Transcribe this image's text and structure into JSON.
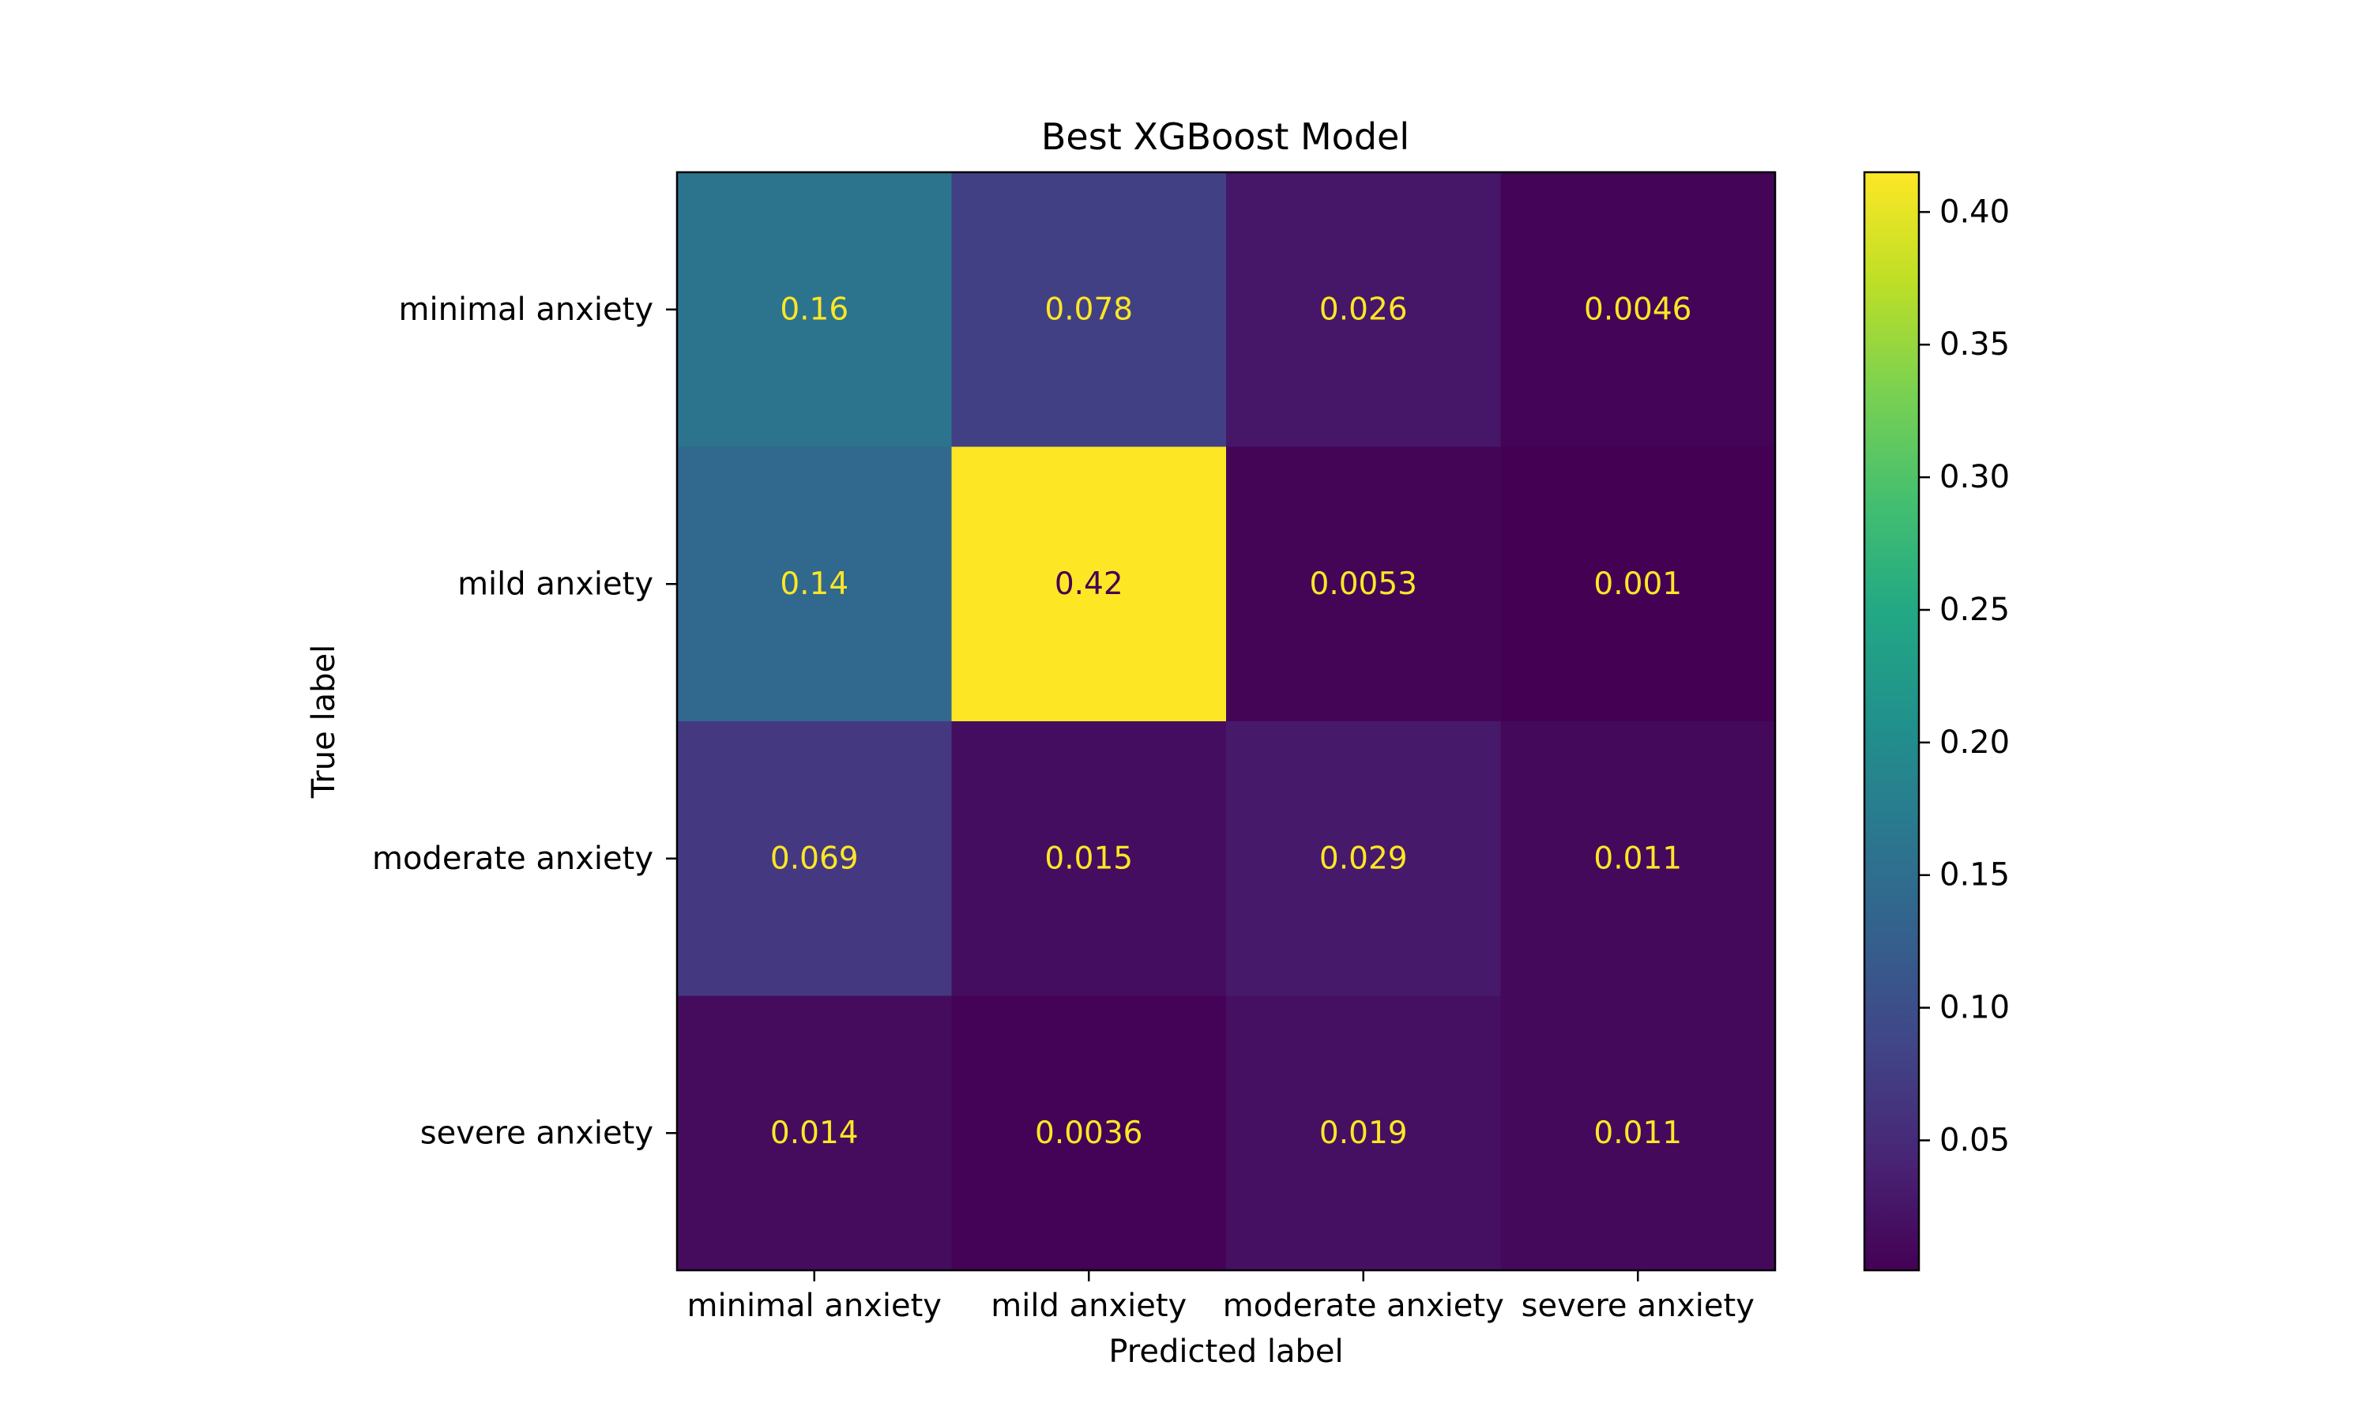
{
  "chart_data": {
    "type": "heatmap",
    "title": "Best XGBoost Model",
    "xlabel": "Predicted label",
    "ylabel": "True label",
    "x_categories": [
      "minimal anxiety",
      "mild anxiety",
      "moderate anxiety",
      "severe anxiety"
    ],
    "y_categories": [
      "minimal anxiety",
      "mild anxiety",
      "moderate anxiety",
      "severe anxiety"
    ],
    "values": [
      [
        0.16,
        0.078,
        0.026,
        0.0046
      ],
      [
        0.14,
        0.42,
        0.0053,
        0.001
      ],
      [
        0.069,
        0.015,
        0.029,
        0.011
      ],
      [
        0.014,
        0.0036,
        0.019,
        0.011
      ]
    ],
    "colormap": "viridis",
    "color_range": [
      0.001,
      0.415
    ],
    "colorbar_ticks": [
      "0.05",
      "0.10",
      "0.15",
      "0.20",
      "0.25",
      "0.30",
      "0.35",
      "0.40"
    ],
    "colorbar_tick_values": [
      0.05,
      0.1,
      0.15,
      0.2,
      0.25,
      0.3,
      0.35,
      0.4
    ],
    "grid": false,
    "label_color_light": "#fde725",
    "label_color_dark": "#440154"
  }
}
